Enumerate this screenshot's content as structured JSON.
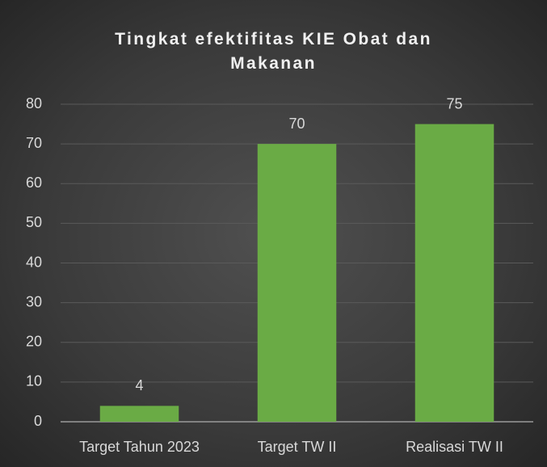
{
  "chart_data": {
    "type": "bar",
    "title": "Tingkat efektifitas KIE Obat dan Makanan",
    "categories": [
      "Target Tahun 2023",
      "Target TW II",
      "Realisasi TW II"
    ],
    "values": [
      4,
      70,
      75
    ],
    "color": "#6aab45",
    "ylim": [
      0,
      80
    ],
    "yticks": [
      0,
      10,
      20,
      30,
      40,
      50,
      60,
      70,
      80
    ],
    "grid": true
  }
}
